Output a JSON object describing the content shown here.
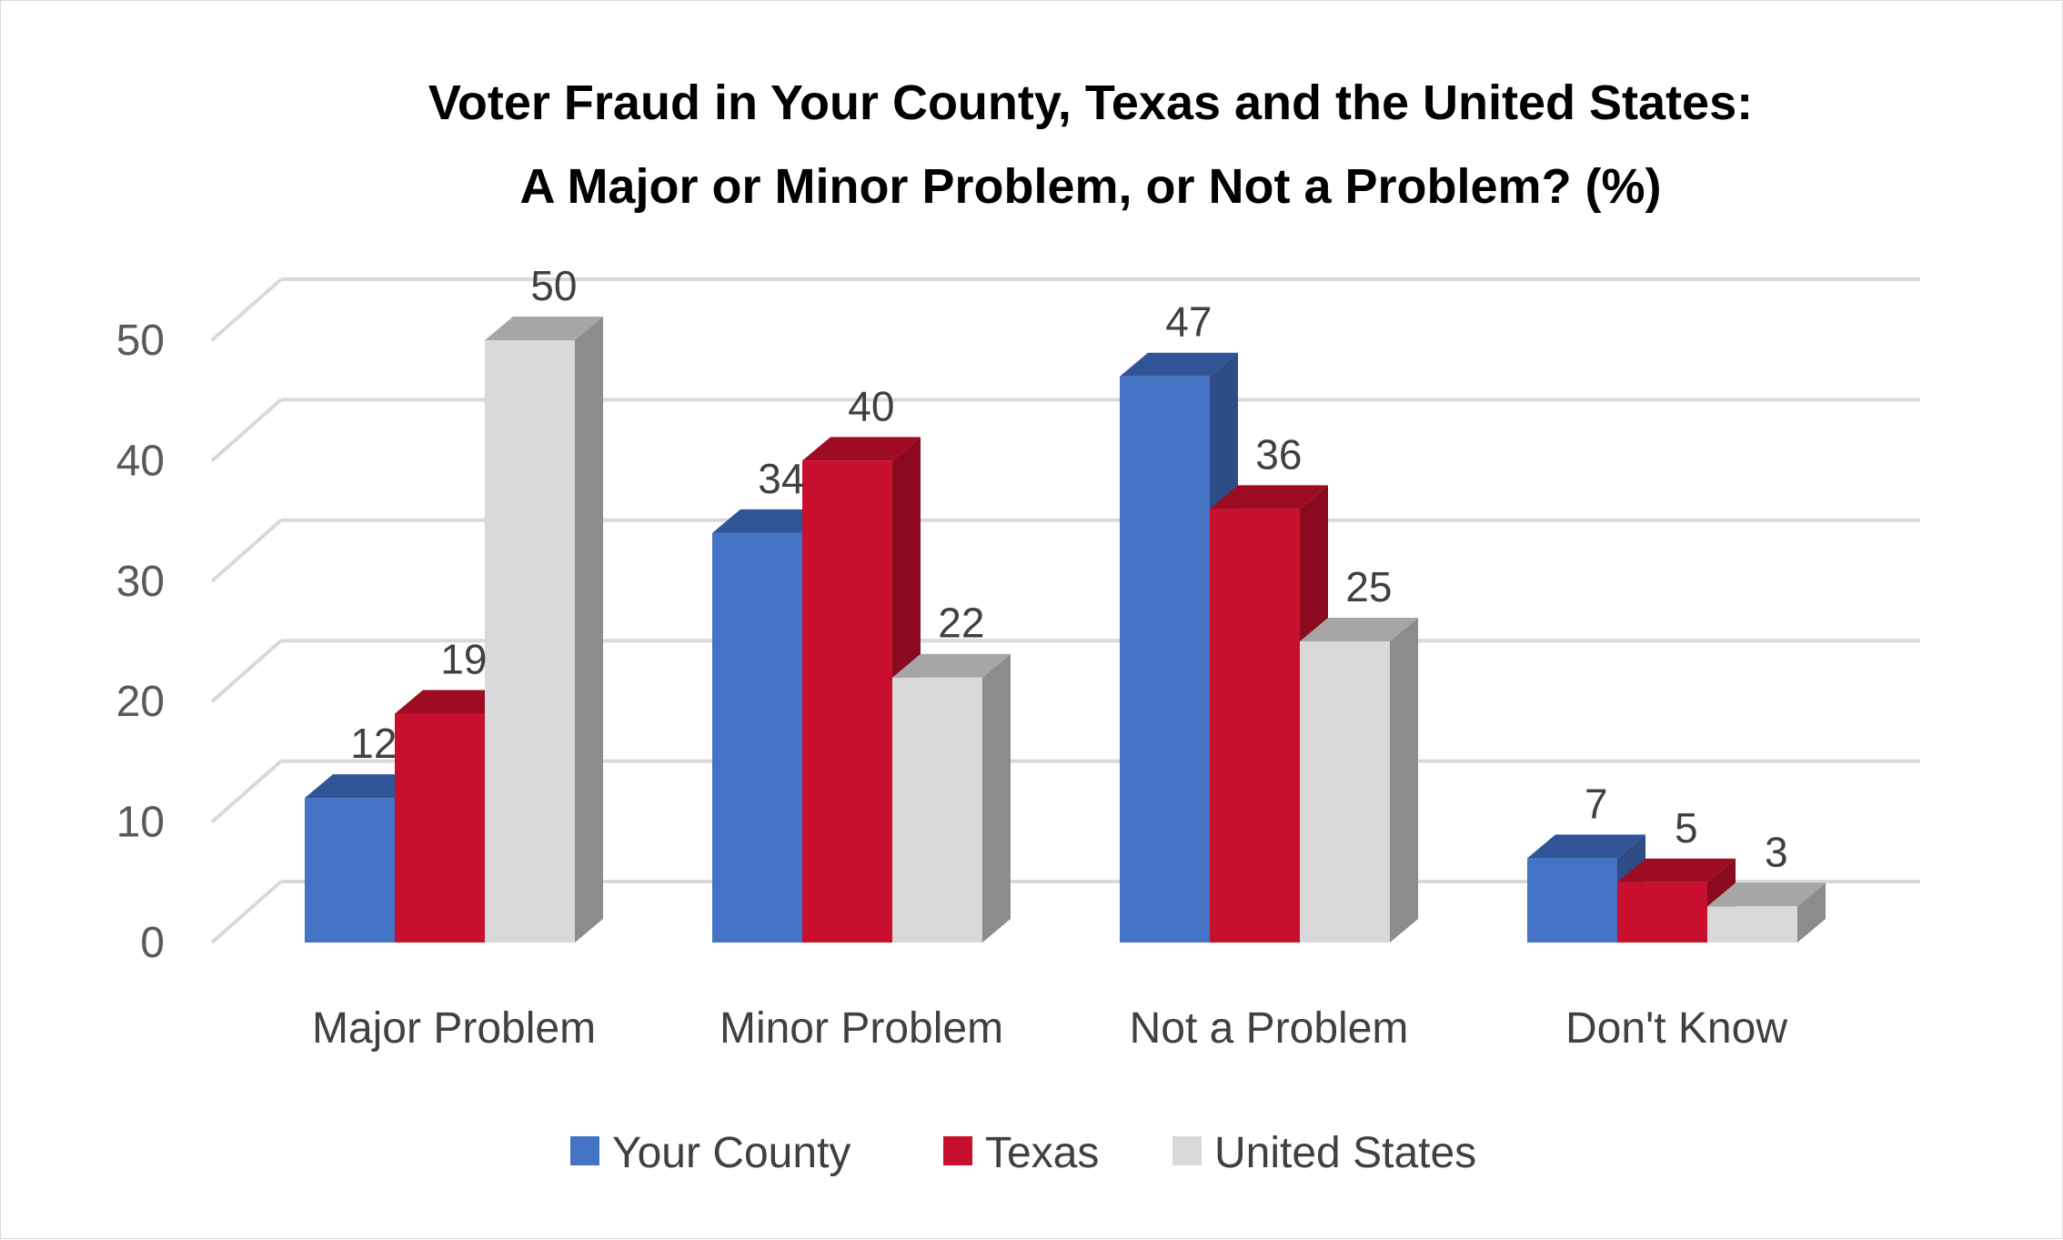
{
  "chart_data": {
    "type": "bar",
    "title_lines": [
      "Voter Fraud in Your County, Texas and the United States:",
      "A Major or Minor Problem, or Not a Problem? (%)"
    ],
    "categories": [
      "Major Problem",
      "Minor Problem",
      "Not a Problem",
      "Don't Know"
    ],
    "series": [
      {
        "name": "Your County",
        "values": [
          12,
          34,
          47,
          7
        ],
        "color": "#4472c4",
        "side_color": "#2e4c85",
        "top_color": "#2f5597"
      },
      {
        "name": "Texas",
        "values": [
          19,
          40,
          36,
          5
        ],
        "color": "#c8102e",
        "side_color": "#8b0a1f",
        "top_color": "#9e0c24"
      },
      {
        "name": "United States",
        "values": [
          50,
          22,
          25,
          3
        ],
        "color": "#d9d9d9",
        "side_color": "#8c8c8c",
        "top_color": "#a6a6a6"
      }
    ],
    "y_ticks": [
      0,
      10,
      20,
      30,
      40,
      50
    ],
    "ylim": [
      0,
      50
    ],
    "grid": true,
    "legend_position": "bottom",
    "xlabel": "",
    "ylabel": ""
  }
}
